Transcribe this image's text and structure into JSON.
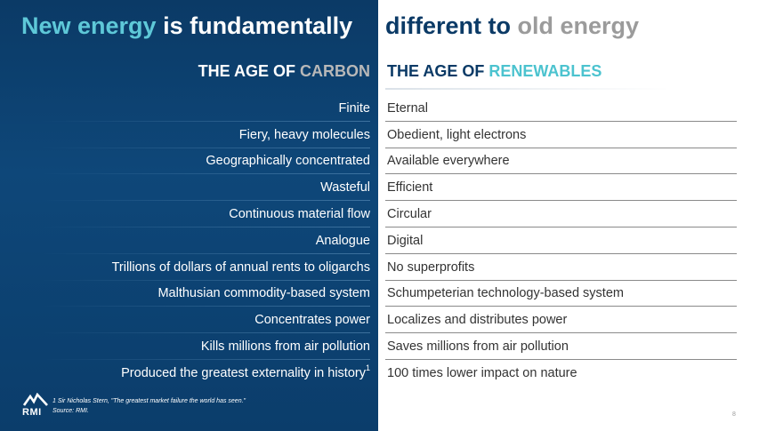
{
  "title": {
    "part1_accent": "New energy",
    "part1_rest": " is fundamentally",
    "part2_rest": "different to ",
    "part2_muted": "old energy"
  },
  "headers": {
    "left_prefix": "THE AGE OF ",
    "left_highlight": "CARBON",
    "right_prefix": "THE AGE OF ",
    "right_highlight": "RENEWABLES"
  },
  "rows": [
    {
      "carbon": "Finite",
      "renewables": "Eternal"
    },
    {
      "carbon": "Fiery, heavy molecules",
      "renewables": "Obedient, light electrons"
    },
    {
      "carbon": "Geographically concentrated",
      "renewables": "Available everywhere"
    },
    {
      "carbon": "Wasteful",
      "renewables": "Efficient"
    },
    {
      "carbon": "Continuous material flow",
      "renewables": "Circular"
    },
    {
      "carbon": "Analogue",
      "renewables": "Digital"
    },
    {
      "carbon": "Trillions of dollars of annual rents to oligarchs",
      "renewables": "No superprofits"
    },
    {
      "carbon": "Malthusian commodity-based system",
      "renewables": "Schumpeterian technology-based system"
    },
    {
      "carbon": "Concentrates power",
      "renewables": "Localizes and distributes power"
    },
    {
      "carbon": "Kills millions from air pollution",
      "renewables": "Saves millions from air pollution"
    },
    {
      "carbon": "Produced the greatest externality in history",
      "renewables": "100 times lower impact on nature"
    }
  ],
  "footnote_marker": "1",
  "footnote": {
    "line1": "1  Sir Nicholas Stern, \"The greatest market failure the world has seen.\"",
    "line2": "Source: RMI."
  },
  "logo_text": "RMI",
  "page_number": "8",
  "colors": {
    "navy": "#0b3a66",
    "teal_accent": "#5ec8d8",
    "gray_muted": "#9b9b9b"
  }
}
